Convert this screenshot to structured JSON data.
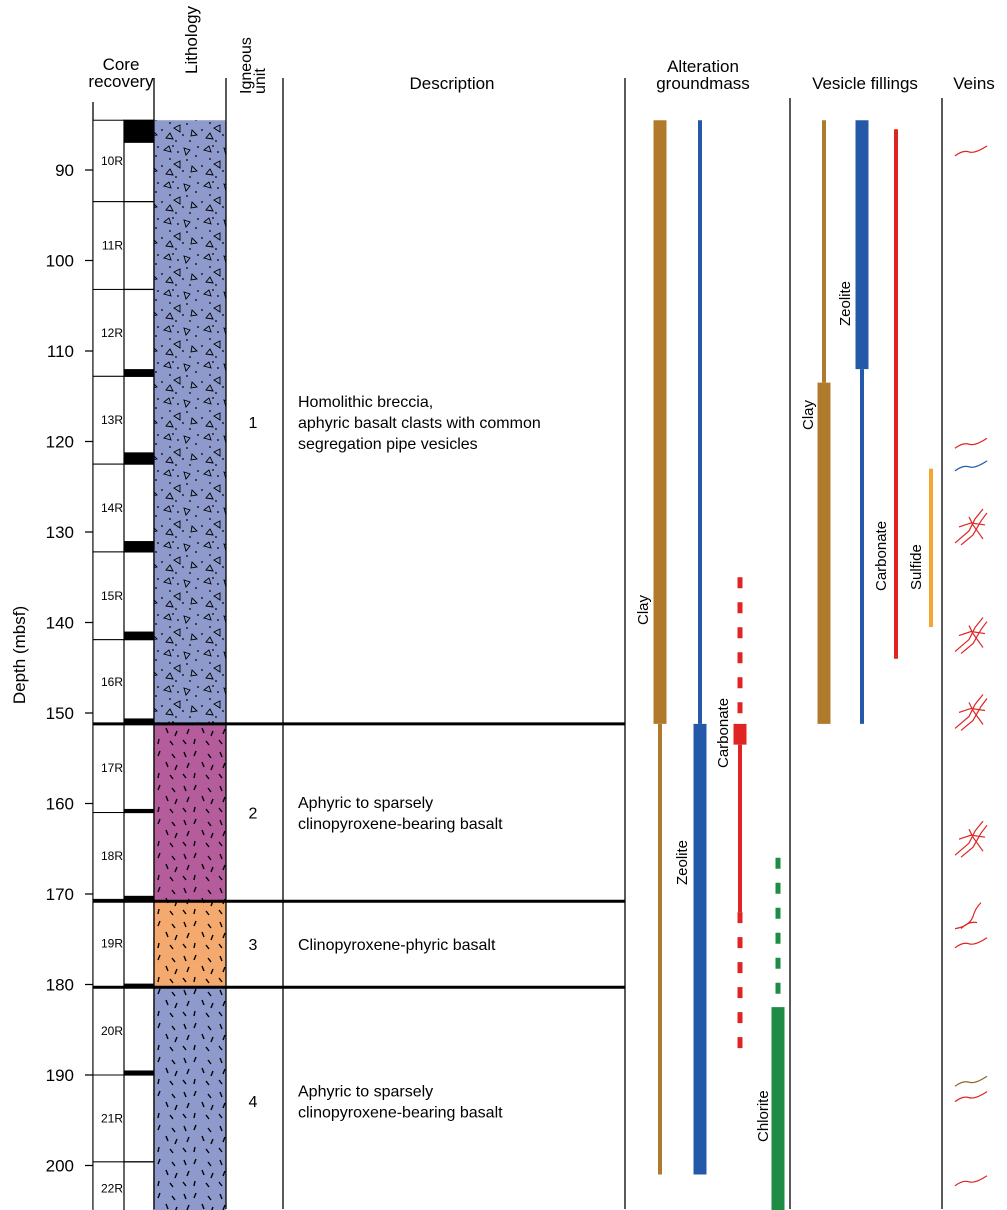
{
  "headers": {
    "core_recovery": [
      "Core",
      "recovery"
    ],
    "lithology": "Lithology",
    "igneous_unit": [
      "Igneous",
      "unit"
    ],
    "description": "Description",
    "alteration": [
      "Alteration",
      "groundmass"
    ],
    "vesicle_fillings": "Vesicle fillings",
    "veins": "Veins"
  },
  "axis": {
    "label": "Depth (mbsf)",
    "ticks": [
      "90",
      "100",
      "110",
      "120",
      "130",
      "140",
      "150",
      "160",
      "170",
      "180",
      "190",
      "200"
    ]
  },
  "cores": [
    {
      "label": "10R",
      "top": 84.5,
      "bottom": 93.5,
      "recovered": [
        [
          84.5,
          87.0
        ]
      ]
    },
    {
      "label": "11R",
      "top": 93.5,
      "bottom": 103.2,
      "recovered": []
    },
    {
      "label": "12R",
      "top": 103.2,
      "bottom": 112.8,
      "recovered": [
        [
          112.0,
          112.8
        ]
      ]
    },
    {
      "label": "13R",
      "top": 112.8,
      "bottom": 122.5,
      "recovered": [
        [
          121.2,
          122.5
        ]
      ]
    },
    {
      "label": "14R",
      "top": 122.5,
      "bottom": 132.2,
      "recovered": [
        [
          131.0,
          132.2
        ]
      ]
    },
    {
      "label": "15R",
      "top": 132.2,
      "bottom": 141.9,
      "recovered": [
        [
          141.0,
          144.2
        ]
      ]
    },
    {
      "label": "16R",
      "top": 141.9,
      "bottom": 151.2,
      "recovered": [
        [
          150.6,
          151.2
        ]
      ]
    },
    {
      "label": "17R",
      "top": 151.2,
      "bottom": 161.0,
      "recovered": [
        [
          160.6,
          161.0
        ]
      ]
    },
    {
      "label": "18R",
      "top": 161.0,
      "bottom": 170.6,
      "recovered": [
        [
          170.2,
          171.0
        ]
      ]
    },
    {
      "label": "19R",
      "top": 170.6,
      "bottom": 180.3,
      "recovered": [
        [
          179.9,
          180.3
        ]
      ]
    },
    {
      "label": "20R",
      "top": 180.3,
      "bottom": 190.0,
      "recovered": [
        [
          189.5,
          190.3
        ]
      ]
    },
    {
      "label": "21R",
      "top": 190.0,
      "bottom": 199.6,
      "recovered": []
    },
    {
      "label": "22R",
      "top": 199.6,
      "bottom": 205.5,
      "recovered": []
    }
  ],
  "units": [
    {
      "number": "1",
      "top": 84.5,
      "bottom": 151.2,
      "lithology": "breccia",
      "color": "#8e9acc",
      "description": [
        "Homolithic breccia,",
        "aphyric basalt clasts with common",
        "segregation pipe vesicles"
      ]
    },
    {
      "number": "2",
      "top": 151.2,
      "bottom": 170.8,
      "lithology": "basalt",
      "color": "#b45c9c",
      "description": [
        "Aphyric to sparsely",
        "clinopyroxene-bearing basalt"
      ]
    },
    {
      "number": "3",
      "top": 170.8,
      "bottom": 180.3,
      "lithology": "basalt",
      "color": "#f4aa6e",
      "description": [
        "Clinopyroxene-phyric basalt"
      ]
    },
    {
      "number": "4",
      "top": 180.3,
      "bottom": 205.5,
      "lithology": "basalt",
      "color": "#8e9acc",
      "description": [
        "Aphyric to sparsely",
        "clinopyroxene-bearing basalt"
      ]
    }
  ],
  "alteration": [
    {
      "label": "Clay",
      "color": "#b07a2c",
      "segments": [
        {
          "top": 84.5,
          "bottom": 151.2,
          "style": "thick"
        },
        {
          "top": 151.2,
          "bottom": 201.0,
          "style": "thin"
        }
      ]
    },
    {
      "label": "Zeolite",
      "color": "#2458a8",
      "segments": [
        {
          "top": 84.5,
          "bottom": 151.2,
          "style": "thin"
        },
        {
          "top": 151.2,
          "bottom": 201.0,
          "style": "thick"
        }
      ]
    },
    {
      "label": "Carbonate",
      "color": "#e02424",
      "segments": [
        {
          "top": 135.0,
          "bottom": 151.2,
          "style": "dashed"
        },
        {
          "top": 151.2,
          "bottom": 153.5,
          "style": "block"
        },
        {
          "top": 153.5,
          "bottom": 172.0,
          "style": "medium"
        },
        {
          "top": 172.0,
          "bottom": 188.0,
          "style": "dashed"
        }
      ]
    },
    {
      "label": "Chlorite",
      "color": "#1e8c44",
      "segments": [
        {
          "top": 166.0,
          "bottom": 182.5,
          "style": "dashed"
        },
        {
          "top": 182.5,
          "bottom": 205.5,
          "style": "thick"
        }
      ]
    }
  ],
  "vesicle_fillings": [
    {
      "label": "Clay",
      "color": "#b07a2c",
      "segments": [
        {
          "top": 84.5,
          "bottom": 113.5,
          "style": "thin"
        },
        {
          "top": 113.5,
          "bottom": 151.2,
          "style": "thick"
        }
      ]
    },
    {
      "label": "Zeolite",
      "color": "#2458a8",
      "segments": [
        {
          "top": 84.5,
          "bottom": 112.0,
          "style": "thick"
        },
        {
          "top": 112.0,
          "bottom": 151.2,
          "style": "thin"
        }
      ]
    },
    {
      "label": "Carbonate",
      "color": "#e02424",
      "segments": [
        {
          "top": 85.5,
          "bottom": 144.0,
          "style": "medium"
        }
      ]
    },
    {
      "label": "Sulfide",
      "color": "#f2a634",
      "segments": [
        {
          "top": 123.0,
          "bottom": 140.5,
          "style": "medium"
        }
      ]
    }
  ],
  "veins": [
    {
      "depth": 88.0,
      "type": "single",
      "color": "#e02424"
    },
    {
      "depth": 120.3,
      "type": "single",
      "color": "#e02424"
    },
    {
      "depth": 122.8,
      "type": "single",
      "color": "#2458a8"
    },
    {
      "depth": 129.0,
      "type": "network",
      "color": "#e02424"
    },
    {
      "depth": 141.0,
      "type": "network",
      "color": "#e02424"
    },
    {
      "depth": 149.5,
      "type": "network",
      "color": "#e02424"
    },
    {
      "depth": 163.5,
      "type": "network",
      "color": "#e02424"
    },
    {
      "depth": 172.5,
      "type": "branch",
      "color": "#e02424"
    },
    {
      "depth": 175.5,
      "type": "single",
      "color": "#e02424"
    },
    {
      "depth": 190.8,
      "type": "single",
      "color": "#8a6a2a"
    },
    {
      "depth": 192.5,
      "type": "single",
      "color": "#e02424"
    },
    {
      "depth": 201.8,
      "type": "single",
      "color": "#e02424"
    }
  ]
}
